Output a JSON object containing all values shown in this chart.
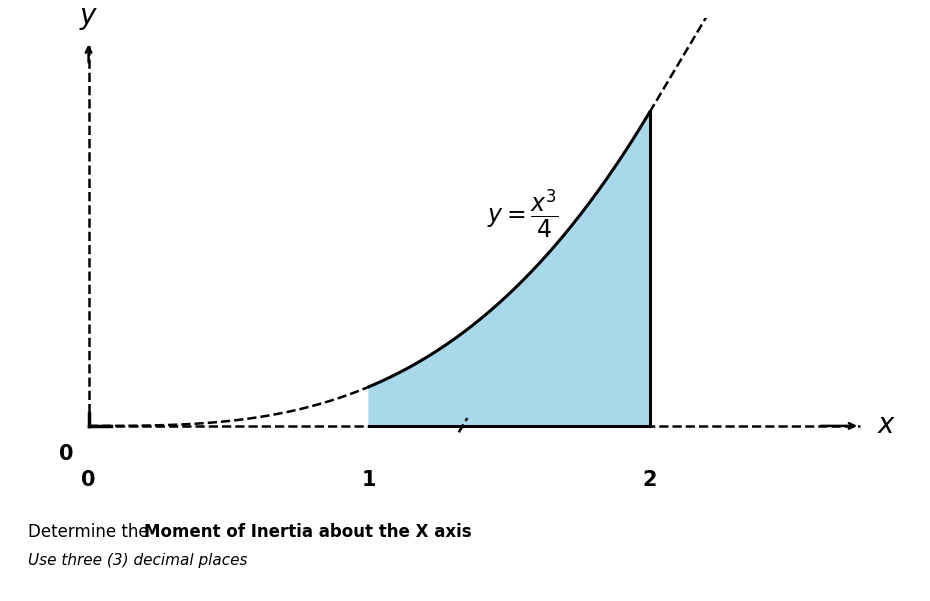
{
  "equation_label": "$y = \\dfrac{x^3}{4}$",
  "x_label": "$x$",
  "y_label": "$y$",
  "fill_color": "#a8d8ea",
  "fill_alpha": 1.0,
  "fill_x_start": 1,
  "fill_x_end": 2,
  "curve_color": "#000000",
  "line_color": "#000000",
  "dashed_color": "#000000",
  "background_color": "#ffffff",
  "bottom_text_normal": "Determine the ",
  "bottom_text_bold": "Moment of Inertia about the X axis",
  "bottom_text_italic": "Use three (3) decimal places",
  "figsize": [
    9.3,
    6.01
  ],
  "dpi": 100,
  "xlim": [
    -0.15,
    2.9
  ],
  "ylim": [
    -0.35,
    2.6
  ],
  "origin_x": 0,
  "origin_y": 0
}
